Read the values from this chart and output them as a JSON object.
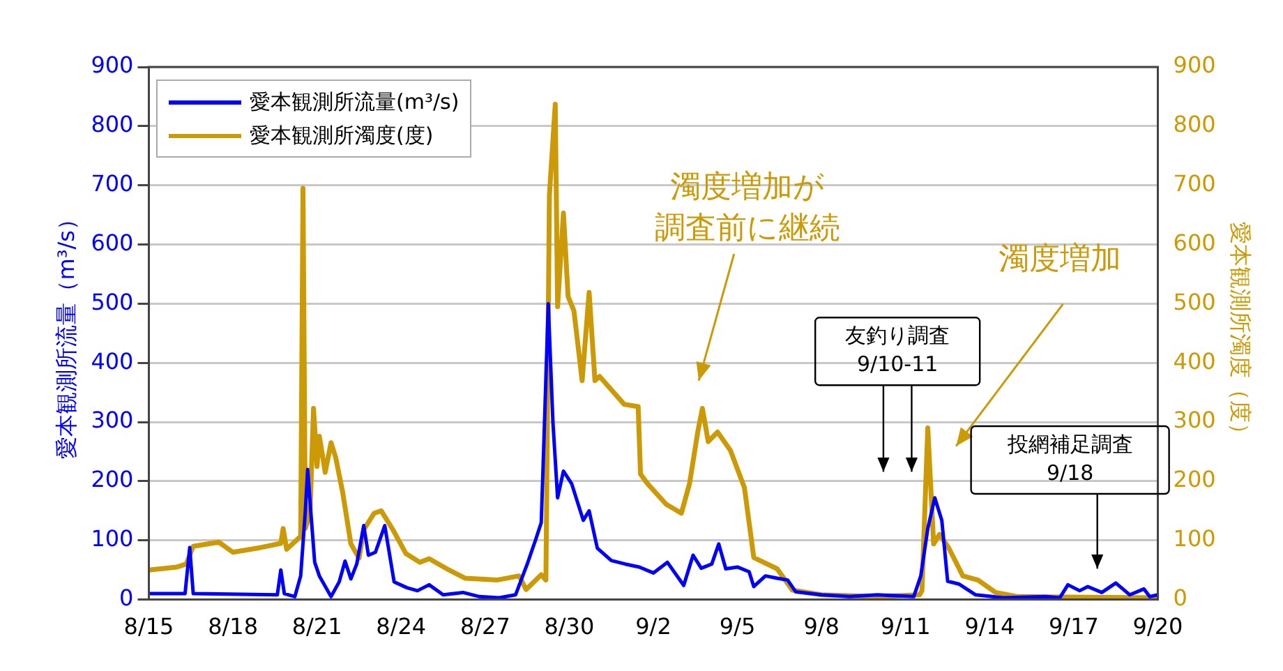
{
  "chart_data": {
    "type": "line",
    "ylabel": "愛本観測所流量（m³/s）",
    "y2label": "愛本観測所濁度（度）",
    "xlim": [
      "--08-15",
      "--09-20"
    ],
    "xticks": [
      {
        "value": "--08-15",
        "label": "8/15"
      },
      {
        "value": "--08-18",
        "label": "8/18"
      },
      {
        "value": "--08-21",
        "label": "8/21"
      },
      {
        "value": "--08-24",
        "label": "8/24"
      },
      {
        "value": "--08-27",
        "label": "8/27"
      },
      {
        "value": "--08-30",
        "label": "8/30"
      },
      {
        "value": "--09-02",
        "label": "9/2"
      },
      {
        "value": "--09-05",
        "label": "9/5"
      },
      {
        "value": "--09-08",
        "label": "9/8"
      },
      {
        "value": "--09-11",
        "label": "9/11"
      },
      {
        "value": "--09-14",
        "label": "9/14"
      },
      {
        "value": "--09-17",
        "label": "9/17"
      },
      {
        "value": "--09-20",
        "label": "9/20"
      }
    ],
    "ylim": [
      0,
      900
    ],
    "yticks": [
      0,
      100,
      200,
      300,
      400,
      500,
      600,
      700,
      800,
      900
    ],
    "y2lim": [
      0,
      900
    ],
    "y2ticks": [
      0,
      100,
      200,
      300,
      400,
      500,
      600,
      700,
      800,
      900
    ],
    "grid": "y",
    "legend": "top left",
    "marker": "none",
    "line_style": "solid",
    "series": [
      {
        "name": "愛本観測所流量(m³/s)",
        "color": "#0000ff",
        "x": [
          "--08-15T00:00",
          "--08-16T07:00",
          "--08-16T11:00",
          "--08-16T14:00",
          "--08-19T14:00",
          "--08-19T17:00",
          "--08-19T20:00",
          "--08-20T05:00",
          "--08-20T10:00",
          "--08-20T14:00",
          "--08-20T16:00",
          "--08-20T19:00",
          "--08-20T22:00",
          "--08-21T02:00",
          "--08-21T12:00",
          "--08-21T19:00",
          "--08-22T00:00",
          "--08-22T05:00",
          "--08-22T10:00",
          "--08-22T16:00",
          "--08-22T20:00",
          "--08-23T02:00",
          "--08-23T10:00",
          "--08-23T18:00",
          "--08-24T05:00",
          "--08-24T14:00",
          "--08-25T00:00",
          "--08-25T12:00",
          "--08-26T05:00",
          "--08-26T19:00",
          "--08-27T12:00",
          "--08-28T02:00",
          "--08-28T12:00",
          "--08-28T19:00",
          "--08-29T00:00",
          "--08-29T02:00",
          "--08-29T06:00",
          "--08-29T10:00",
          "--08-29T14:00",
          "--08-29T19:00",
          "--08-30T02:00",
          "--08-30T12:00",
          "--08-30T17:00",
          "--08-31T00:00",
          "--08-31T12:00",
          "--09-01T00:00",
          "--09-01T12:00",
          "--09-02T00:00",
          "--09-02T12:00",
          "--09-03T02:00",
          "--09-03T10:00",
          "--09-03T17:00",
          "--09-04T02:00",
          "--09-04T08:00",
          "--09-04T14:00",
          "--09-05T00:00",
          "--09-05T10:00",
          "--09-05T14:00",
          "--09-06T00:00",
          "--09-06T10:00",
          "--09-06T19:00",
          "--09-07T02:00",
          "--09-08T00:00",
          "--09-09T00:00",
          "--09-10T00:00",
          "--09-11T07:00",
          "--09-11T13:00",
          "--09-11T19:00",
          "--09-12T01:00",
          "--09-12T07:00",
          "--09-12T12:00",
          "--09-12T22:00",
          "--09-13T12:00",
          "--09-14T12:00",
          "--09-16T00:00",
          "--09-16T12:00",
          "--09-16T19:00",
          "--09-17T05:00",
          "--09-17T12:00",
          "--09-18T00:00",
          "--09-18T12:00",
          "--09-19T00:00",
          "--09-19T12:00",
          "--09-19T17:00",
          "--09-20T00:00"
        ],
        "values": [
          10,
          10,
          88,
          10,
          8,
          50,
          10,
          5,
          40,
          150,
          220,
          140,
          63,
          40,
          5,
          30,
          65,
          35,
          60,
          125,
          75,
          80,
          125,
          30,
          20,
          15,
          25,
          8,
          12,
          5,
          3,
          8,
          60,
          100,
          130,
          250,
          500,
          300,
          172,
          217,
          196,
          134,
          150,
          87,
          66,
          60,
          55,
          45,
          63,
          24,
          75,
          53,
          60,
          94,
          52,
          55,
          47,
          22,
          40,
          36,
          33,
          13,
          8,
          5,
          8,
          5,
          40,
          120,
          172,
          134,
          31,
          26,
          8,
          3,
          5,
          3,
          25,
          15,
          22,
          12,
          28,
          8,
          18,
          5,
          8
        ]
      },
      {
        "name": "愛本観測所濁度(度)",
        "color": "#cc9a06",
        "axis": "y2",
        "x": [
          "--08-15T00:00",
          "--08-16T00:00",
          "--08-16T08:00",
          "--08-16T14:00",
          "--08-17T12:00",
          "--08-18T00:00",
          "--08-19T00:00",
          "--08-19T17:00",
          "--08-19T19:00",
          "--08-19T22:00",
          "--08-20T10:00",
          "--08-20T12:00",
          "--08-20T14:00",
          "--08-20T18:00",
          "--08-20T21:00",
          "--08-21T00:00",
          "--08-21T02:00",
          "--08-21T07:00",
          "--08-21T12:00",
          "--08-21T16:00",
          "--08-21T22:00",
          "--08-22T05:00",
          "--08-22T12:00",
          "--08-22T16:00",
          "--08-23T01:00",
          "--08-23T07:00",
          "--08-23T17:00",
          "--08-24T04:00",
          "--08-24T16:00",
          "--08-25T00:00",
          "--08-25T17:00",
          "--08-26T07:00",
          "--08-27T10:00",
          "--08-28T05:00",
          "--08-28T11:00",
          "--08-29T00:00",
          "--08-29T04:00",
          "--08-29T07:00",
          "--08-29T12:00",
          "--08-29T14:00",
          "--08-29T19:00",
          "--08-29T23:00",
          "--08-30T04:00",
          "--08-30T11:00",
          "--08-30T17:00",
          "--08-30T22:00",
          "--08-31T02:00",
          "--08-31T23:00",
          "--09-01T11:00",
          "--09-01T13:00",
          "--09-01T19:00",
          "--09-02T11:00",
          "--09-03T00:00",
          "--09-03T07:00",
          "--09-03T14:00",
          "--09-03T18:00",
          "--09-03T23:00",
          "--09-04T07:00",
          "--09-04T18:00",
          "--09-05T06:00",
          "--09-05T14:00",
          "--09-06T10:00",
          "--09-06T23:00",
          "--09-08T00:00",
          "--09-10T00:00",
          "--09-11T12:00",
          "--09-11T14:00",
          "--09-11T19:00",
          "--09-12T00:00",
          "--09-12T05:00",
          "--09-12T13:00",
          "--09-13T01:00",
          "--09-13T14:00",
          "--09-14T05:00",
          "--09-15T00:00",
          "--09-20T00:00"
        ],
        "values": [
          50,
          55,
          60,
          90,
          97,
          80,
          88,
          95,
          120,
          85,
          107,
          695,
          120,
          146,
          323,
          225,
          276,
          215,
          265,
          240,
          181,
          94,
          70,
          118,
          146,
          150,
          118,
          78,
          63,
          69,
          50,
          36,
          33,
          40,
          17,
          42,
          33,
          684,
          837,
          495,
          653,
          512,
          488,
          370,
          519,
          370,
          377,
          330,
          326,
          212,
          196,
          161,
          146,
          196,
          283,
          323,
          267,
          283,
          252,
          189,
          71,
          52,
          16,
          8,
          5,
          8,
          15,
          290,
          94,
          110,
          87,
          40,
          33,
          12,
          5,
          3
        ]
      }
    ],
    "annotations": [
      "濁度増加が調査前に継続",
      "濁度増加",
      "友釣り調査\n9/10-11",
      "投網補足調査\n9/18"
    ]
  }
}
